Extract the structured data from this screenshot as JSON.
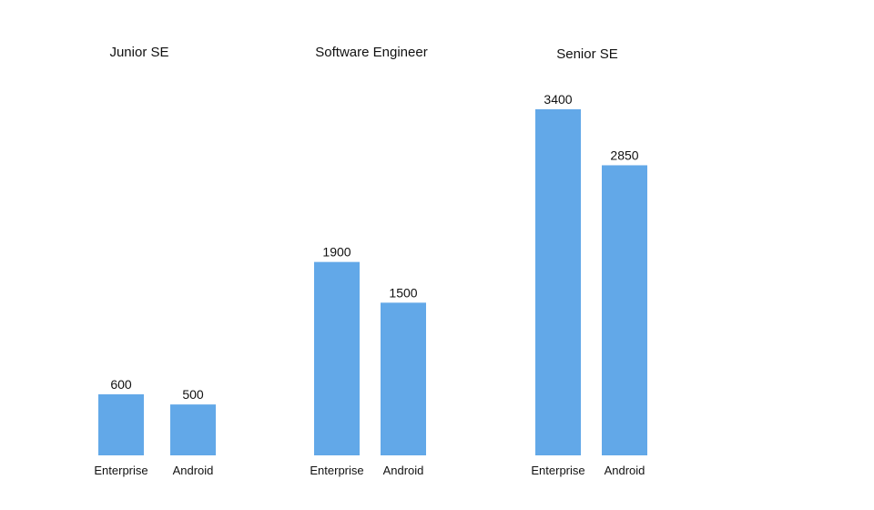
{
  "chart_data": {
    "type": "bar",
    "bar_color": "#62A8E8",
    "groups": [
      {
        "title": "Junior SE",
        "bars": [
          {
            "category": "Enterprise",
            "value": 600,
            "label": "600"
          },
          {
            "category": "Android",
            "value": 500,
            "label": "500"
          }
        ]
      },
      {
        "title": "Software Engineer",
        "bars": [
          {
            "category": "Enterprise",
            "value": 1900,
            "label": "1900"
          },
          {
            "category": "Android",
            "value": 1500,
            "label": "1500"
          }
        ]
      },
      {
        "title": "Senior SE",
        "bars": [
          {
            "category": "Enterprise",
            "value": 3400,
            "label": "3400"
          },
          {
            "category": "Android",
            "value": 2850,
            "label": "2850"
          }
        ]
      }
    ],
    "ylim": [
      0,
      3400
    ],
    "grid": false,
    "axes_visible": false
  }
}
